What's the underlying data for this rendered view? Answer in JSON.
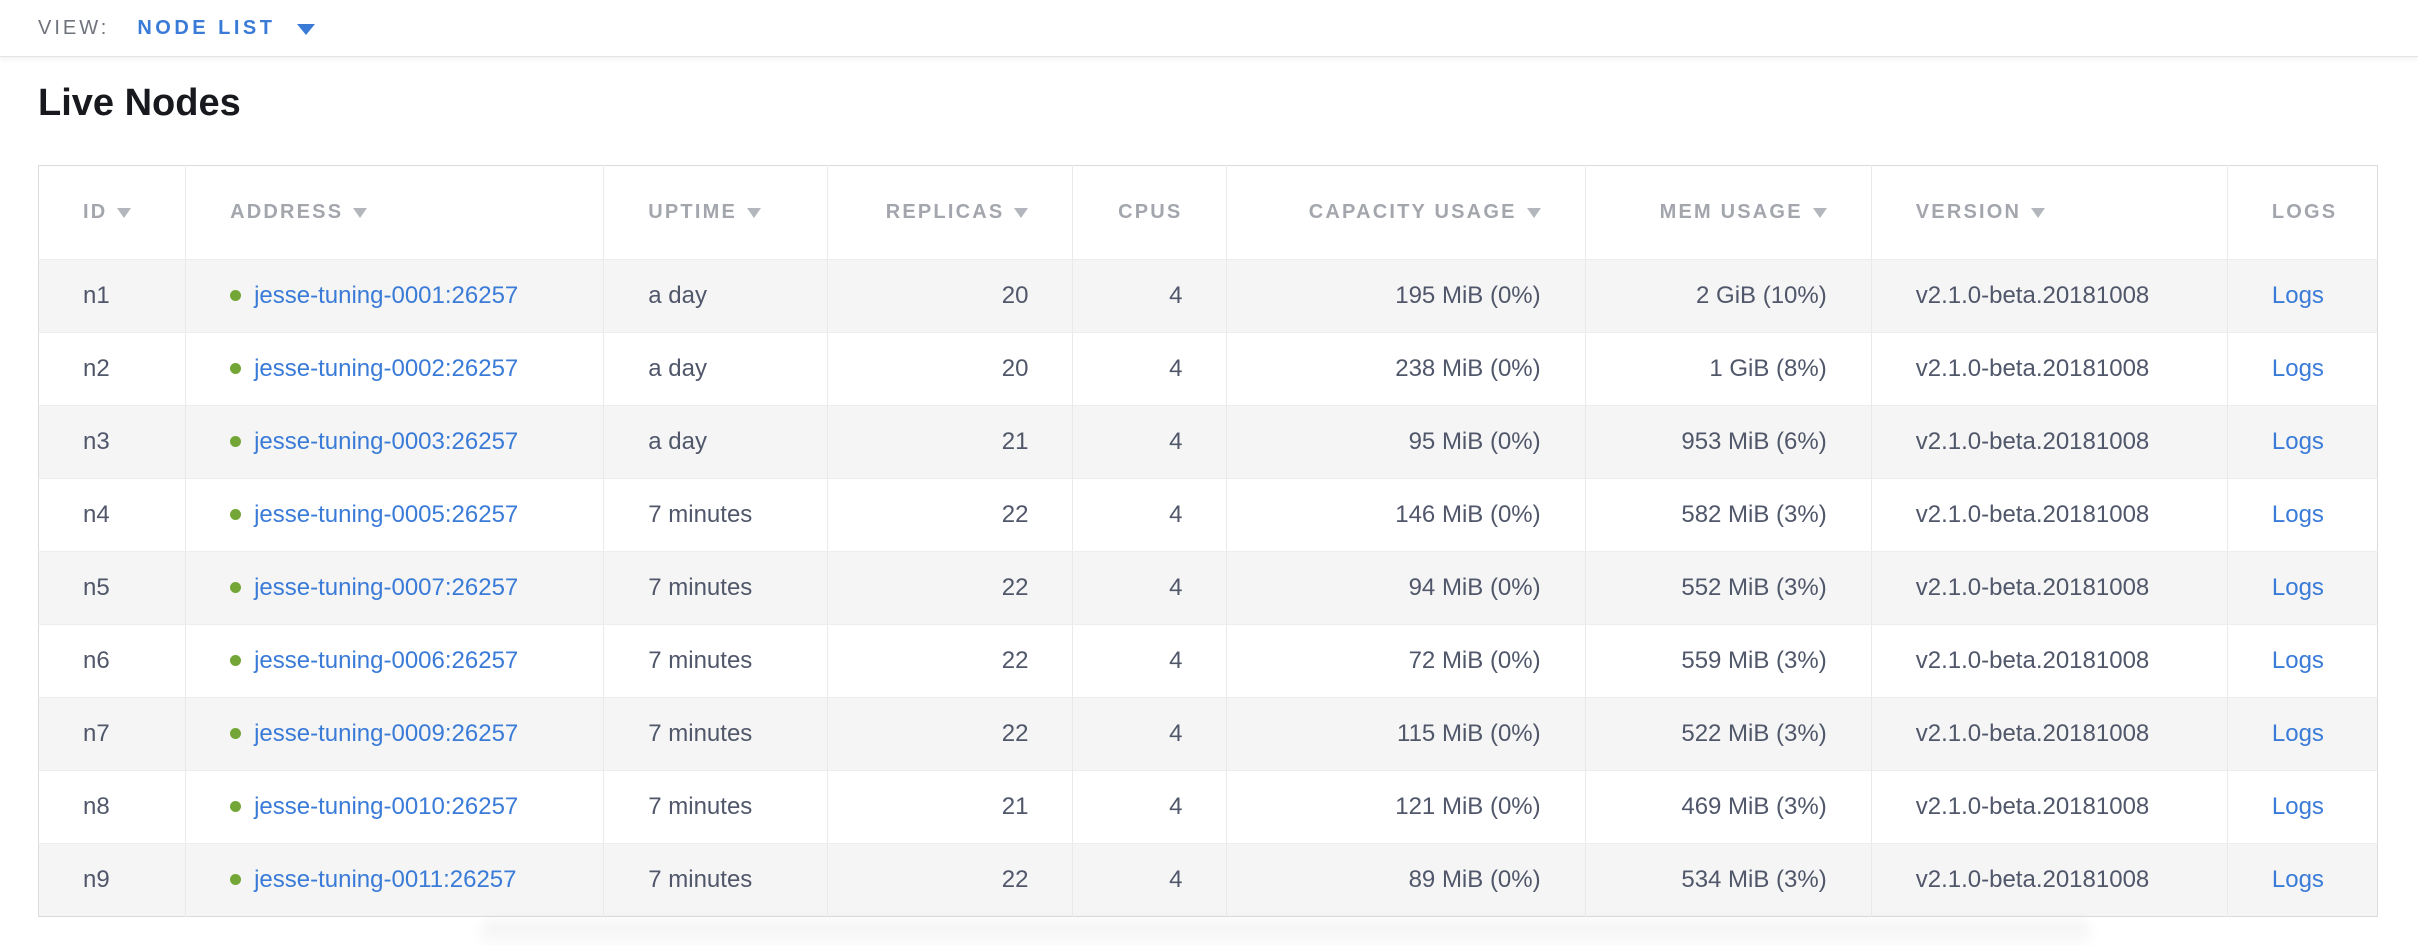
{
  "topbar": {
    "view_label": "VIEW:",
    "view_value": "NODE LIST"
  },
  "page": {
    "title": "Live Nodes"
  },
  "colors": {
    "link_blue": "#3a7bd8",
    "live_dot_green": "#73a636",
    "header_gray": "#a3a6ad",
    "body_text": "#50576a",
    "stripe_gray": "#f5f5f5"
  },
  "table": {
    "columns": [
      {
        "key": "id",
        "label": "ID",
        "sortable": true,
        "align": "left"
      },
      {
        "key": "address",
        "label": "ADDRESS",
        "sortable": true,
        "align": "left"
      },
      {
        "key": "uptime",
        "label": "UPTIME",
        "sortable": true,
        "align": "left"
      },
      {
        "key": "replicas",
        "label": "REPLICAS",
        "sortable": true,
        "align": "right"
      },
      {
        "key": "cpus",
        "label": "CPUS",
        "sortable": false,
        "align": "right"
      },
      {
        "key": "capacity",
        "label": "CAPACITY USAGE",
        "sortable": true,
        "align": "right"
      },
      {
        "key": "mem",
        "label": "MEM USAGE",
        "sortable": true,
        "align": "right"
      },
      {
        "key": "version",
        "label": "VERSION",
        "sortable": true,
        "align": "left"
      },
      {
        "key": "logs",
        "label": "LOGS",
        "sortable": false,
        "align": "left"
      }
    ],
    "rows": [
      {
        "id": "n1",
        "address": "jesse-tuning-0001:26257",
        "uptime": "a day",
        "replicas": "20",
        "cpus": "4",
        "capacity": "195 MiB (0%)",
        "mem": "2 GiB (10%)",
        "version": "v2.1.0-beta.20181008",
        "logs": "Logs"
      },
      {
        "id": "n2",
        "address": "jesse-tuning-0002:26257",
        "uptime": "a day",
        "replicas": "20",
        "cpus": "4",
        "capacity": "238 MiB (0%)",
        "mem": "1 GiB (8%)",
        "version": "v2.1.0-beta.20181008",
        "logs": "Logs"
      },
      {
        "id": "n3",
        "address": "jesse-tuning-0003:26257",
        "uptime": "a day",
        "replicas": "21",
        "cpus": "4",
        "capacity": "95 MiB (0%)",
        "mem": "953 MiB (6%)",
        "version": "v2.1.0-beta.20181008",
        "logs": "Logs"
      },
      {
        "id": "n4",
        "address": "jesse-tuning-0005:26257",
        "uptime": "7 minutes",
        "replicas": "22",
        "cpus": "4",
        "capacity": "146 MiB (0%)",
        "mem": "582 MiB (3%)",
        "version": "v2.1.0-beta.20181008",
        "logs": "Logs"
      },
      {
        "id": "n5",
        "address": "jesse-tuning-0007:26257",
        "uptime": "7 minutes",
        "replicas": "22",
        "cpus": "4",
        "capacity": "94 MiB (0%)",
        "mem": "552 MiB (3%)",
        "version": "v2.1.0-beta.20181008",
        "logs": "Logs"
      },
      {
        "id": "n6",
        "address": "jesse-tuning-0006:26257",
        "uptime": "7 minutes",
        "replicas": "22",
        "cpus": "4",
        "capacity": "72 MiB (0%)",
        "mem": "559 MiB (3%)",
        "version": "v2.1.0-beta.20181008",
        "logs": "Logs"
      },
      {
        "id": "n7",
        "address": "jesse-tuning-0009:26257",
        "uptime": "7 minutes",
        "replicas": "22",
        "cpus": "4",
        "capacity": "115 MiB (0%)",
        "mem": "522 MiB (3%)",
        "version": "v2.1.0-beta.20181008",
        "logs": "Logs"
      },
      {
        "id": "n8",
        "address": "jesse-tuning-0010:26257",
        "uptime": "7 minutes",
        "replicas": "21",
        "cpus": "4",
        "capacity": "121 MiB (0%)",
        "mem": "469 MiB (3%)",
        "version": "v2.1.0-beta.20181008",
        "logs": "Logs"
      },
      {
        "id": "n9",
        "address": "jesse-tuning-0011:26257",
        "uptime": "7 minutes",
        "replicas": "22",
        "cpus": "4",
        "capacity": "89 MiB (0%)",
        "mem": "534 MiB (3%)",
        "version": "v2.1.0-beta.20181008",
        "logs": "Logs"
      }
    ]
  }
}
